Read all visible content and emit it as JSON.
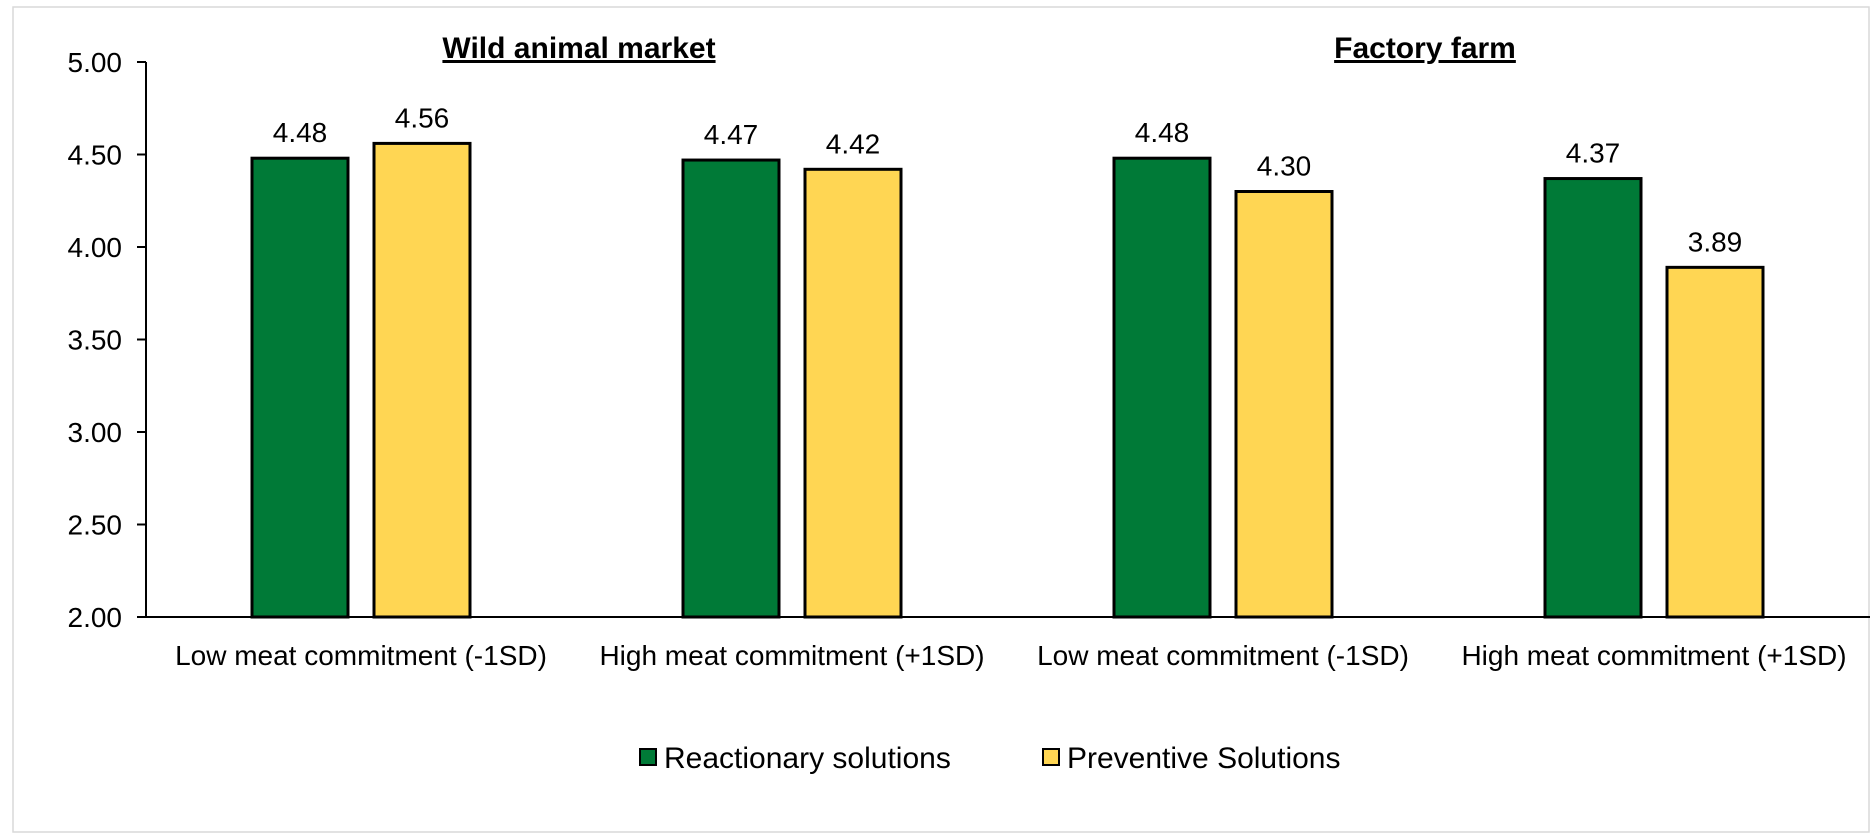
{
  "chart_data": {
    "type": "bar",
    "panel_titles": [
      "Wild animal market",
      "Factory farm"
    ],
    "categories": [
      "Low meat commitment (-1SD)",
      "High meat commitment (+1SD)",
      "Low meat commitment (-1SD)",
      "High meat commitment (+1SD)"
    ],
    "series": [
      {
        "name": "Reactionary solutions",
        "color": "#007A37",
        "values": [
          4.48,
          4.47,
          4.48,
          4.37
        ]
      },
      {
        "name": "Preventive Solutions",
        "color": "#FFD653",
        "values": [
          4.56,
          4.42,
          4.3,
          3.89
        ]
      }
    ],
    "data_labels": [
      [
        "4.48",
        "4.47",
        "4.48",
        "4.37"
      ],
      [
        "4.56",
        "4.42",
        "4.30",
        "3.89"
      ]
    ],
    "yticks": [
      "2.00",
      "2.50",
      "3.00",
      "3.50",
      "4.00",
      "4.50",
      "5.00"
    ],
    "ylim": [
      2.0,
      5.0
    ],
    "xlabel": "",
    "ylabel": "",
    "grid": false,
    "legend_position": "bottom"
  }
}
